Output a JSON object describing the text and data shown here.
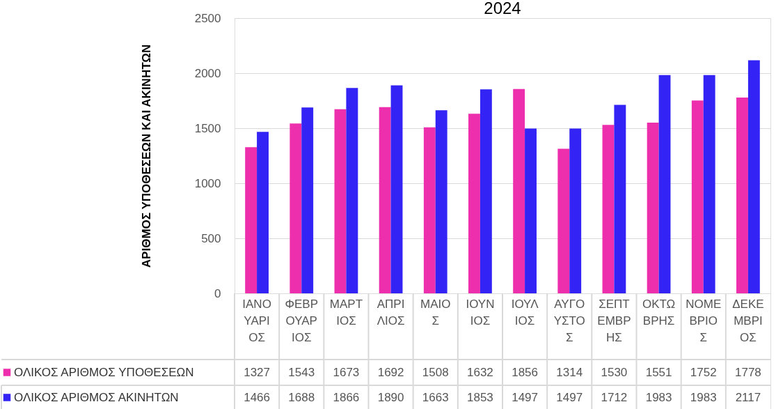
{
  "chart_data": {
    "type": "bar",
    "title": "2024",
    "ylabel": "ΑΡΙΘΜΟΣ ΥΠΟΘΕΣΕΩΝ ΚΑΙ ΑΚΙΝΗΤΩΝ",
    "categories": [
      "ΙΑΝΟΥΑΡΙΟΣ",
      "ΦΕΒΡΟΥΑΡΙΟΣ",
      "ΜΑΡΤΙΟΣ",
      "ΑΠΡΙΛΙΟΣ",
      "ΜΑΙΟΣ",
      "ΙΟΥΝΙΟΣ",
      "ΙΟΥΛΙΟΣ",
      "ΑΥΓΟΥΣΤΟΣ",
      "ΣΕΠΤΕΜΒΡΗΣ",
      "ΟΚΤΩΒΡΗΣ",
      "ΝΟΜΕΒΡΙΟΣ",
      "ΔΕΚΕΜΒΡΙΟΣ"
    ],
    "series": [
      {
        "name": "ΟΛΙΚΟΣ ΑΡΙΘΜΟΣ ΥΠΟΘΕΣΕΩΝ",
        "color": "#ee2fad",
        "values": [
          1327,
          1543,
          1673,
          1692,
          1508,
          1632,
          1856,
          1314,
          1530,
          1551,
          1752,
          1778
        ]
      },
      {
        "name": "ΟΛΙΚΟΣ ΑΡΙΘΜΟΣ ΑΚΙΝΗΤΩΝ",
        "color": "#3323f5",
        "values": [
          1466,
          1688,
          1866,
          1890,
          1663,
          1853,
          1497,
          1497,
          1712,
          1983,
          1983,
          2117
        ]
      }
    ],
    "ylim": [
      0,
      2500
    ],
    "yticks": [
      0,
      500,
      1000,
      1500,
      2000,
      2500
    ],
    "grid": "y",
    "legend": "bottom",
    "data_labels": true
  }
}
